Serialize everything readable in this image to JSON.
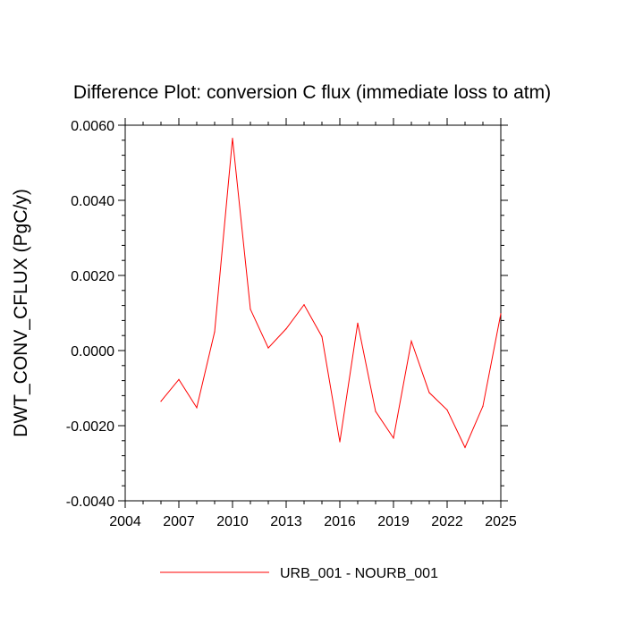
{
  "chart_data": {
    "type": "line",
    "title": "Difference Plot: conversion C flux (immediate loss to atm)",
    "xlabel": "",
    "ylabel": "DWT_CONV_CFLUX  (PgC/y)",
    "xlim": [
      2004,
      2025
    ],
    "ylim": [
      -0.004,
      0.006
    ],
    "x_ticks": [
      2004,
      2007,
      2010,
      2013,
      2016,
      2019,
      2022,
      2025
    ],
    "x_tick_labels": [
      "2004",
      "2007",
      "2010",
      "2013",
      "2016",
      "2019",
      "2022",
      "2025"
    ],
    "y_ticks": [
      -0.004,
      -0.002,
      0.0,
      0.002,
      0.004,
      0.006
    ],
    "y_tick_labels": [
      "-0.0040",
      "-0.0020",
      "0.0000",
      "0.0020",
      "0.0040",
      "0.0060"
    ],
    "x_minor_step": 1,
    "y_minor_step": 0.0004,
    "grid": false,
    "legend_position": "bottom-center",
    "series": [
      {
        "name": "URB_001 - NOURB_001",
        "color": "#ff0000",
        "x": [
          2006,
          2007,
          2008,
          2009,
          2010,
          2011,
          2012,
          2013,
          2014,
          2015,
          2016,
          2017,
          2018,
          2019,
          2020,
          2021,
          2022,
          2023,
          2024,
          2025
        ],
        "values": [
          -0.00135,
          -0.00077,
          -0.00152,
          0.0005,
          0.00565,
          0.0011,
          7e-05,
          0.00058,
          0.00122,
          0.00037,
          -0.00243,
          0.00073,
          -0.00162,
          -0.00233,
          0.00025,
          -0.00112,
          -0.00158,
          -0.00258,
          -0.00148,
          0.00098
        ]
      }
    ]
  }
}
